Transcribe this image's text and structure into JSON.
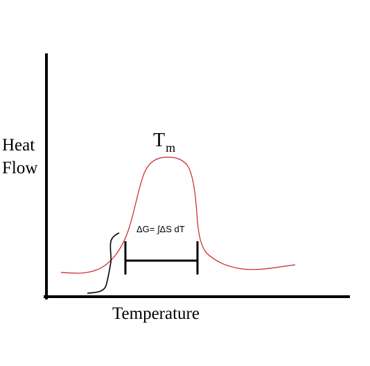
{
  "diagram": {
    "y_axis_label_line1": "Heat",
    "y_axis_label_line2": "Flow",
    "x_axis_label": "Temperature",
    "peak_label_main": "T",
    "peak_label_sub": "m",
    "integral_label": "ΔG= ∫ΔS dT",
    "colors": {
      "axes": "#000000",
      "curve": "#cc2222",
      "bracket": "#000000"
    }
  }
}
